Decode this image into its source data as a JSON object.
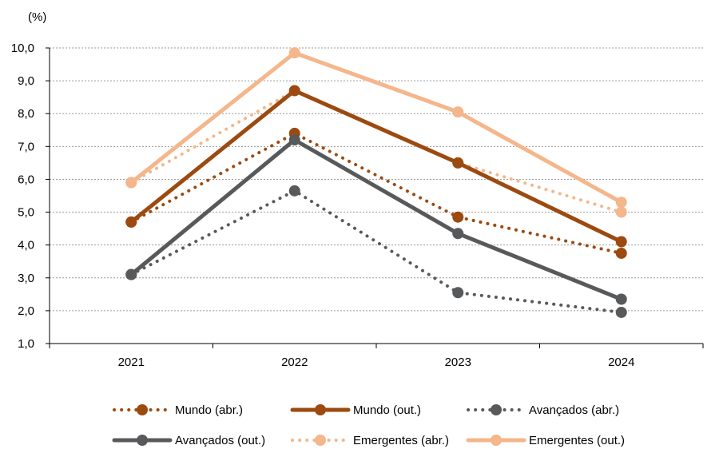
{
  "chart_data": {
    "type": "line",
    "unit_label": "(%)",
    "categories": [
      "2021",
      "2022",
      "2023",
      "2024"
    ],
    "ylim": [
      1.0,
      10.0
    ],
    "yticks": [
      "1,0",
      "2,0",
      "3,0",
      "4,0",
      "5,0",
      "6,0",
      "7,0",
      "8,0",
      "9,0",
      "10,0"
    ],
    "grid": true,
    "legend_position": "bottom",
    "series": [
      {
        "name": "Mundo (abr.)",
        "values": [
          4.7,
          7.4,
          4.85,
          3.75
        ],
        "color": "#9C4A10",
        "style": "dotted"
      },
      {
        "name": "Mundo (out.)",
        "values": [
          4.7,
          8.7,
          6.5,
          4.1
        ],
        "color": "#9C4A10",
        "style": "solid"
      },
      {
        "name": "Avançados (abr.)",
        "values": [
          3.1,
          5.65,
          2.55,
          1.95
        ],
        "color": "#58595B",
        "style": "dotted"
      },
      {
        "name": "Avançados (out.)",
        "values": [
          3.1,
          7.2,
          4.35,
          2.35
        ],
        "color": "#58595B",
        "style": "solid"
      },
      {
        "name": "Emergentes (abr.)",
        "values": [
          5.9,
          8.7,
          6.5,
          5.0
        ],
        "color": "#F4B68A",
        "style": "dotted"
      },
      {
        "name": "Emergentes (out.)",
        "values": [
          5.9,
          9.85,
          8.05,
          5.3
        ],
        "color": "#F4B68A",
        "style": "solid"
      }
    ]
  }
}
